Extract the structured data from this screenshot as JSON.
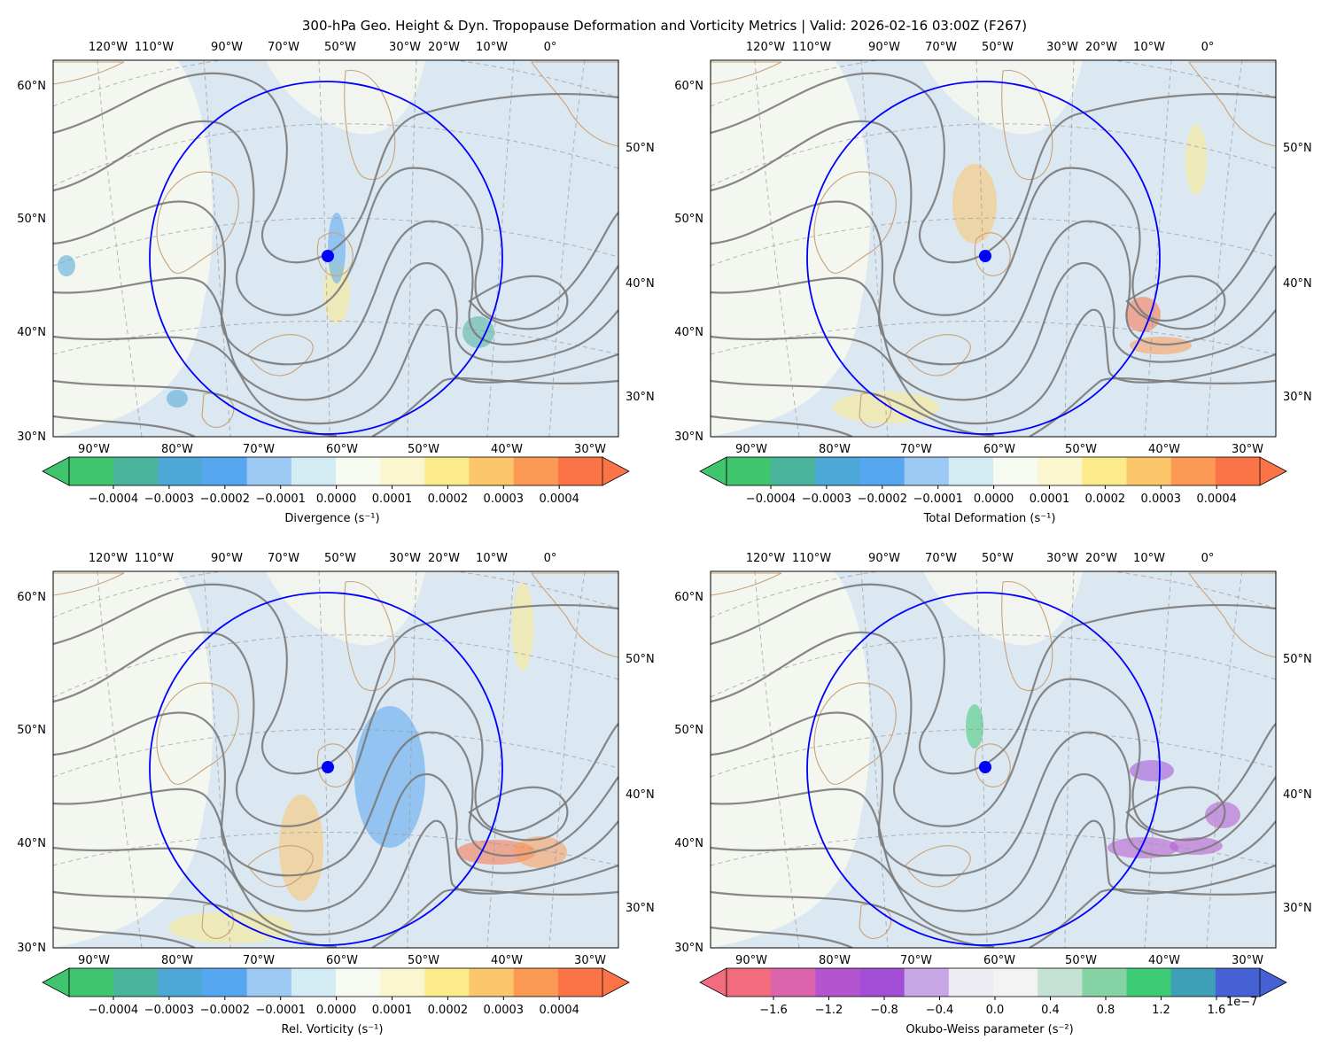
{
  "figure": {
    "title": "300-hPa Geo. Height & Dyn. Tropopause Deformation and Vorticity Metrics |  Valid: 2026-02-16 03:00Z (F267)"
  },
  "map_labels": {
    "top_lon": [
      "120°W",
      "110°W",
      "90°W",
      "70°W",
      "50°W",
      "30°W",
      "20°W",
      "10°W",
      "0°"
    ],
    "bottom_lon": [
      "90°W",
      "80°W",
      "70°W",
      "60°W",
      "50°W",
      "40°W",
      "30°W"
    ],
    "left_lat": [
      "60°N",
      "50°N",
      "40°N",
      "30°N"
    ],
    "right_lat": [
      "50°N",
      "40°N",
      "30°N"
    ]
  },
  "panels": [
    {
      "id": "divergence",
      "colorbar_label": "Divergence (s⁻¹)",
      "colorbar_ticks": [
        "−0.0004",
        "−0.0003",
        "−0.0002",
        "−0.0001",
        "0.0000",
        "0.0001",
        "0.0002",
        "0.0003",
        "0.0004"
      ],
      "colormap": [
        "#3ec56e",
        "#4ab39c",
        "#4da8d8",
        "#56a6f0",
        "#9ccaf4",
        "#d3ecf4",
        "#f6fbf2",
        "#fbf6cf",
        "#fbeb8a",
        "#fcc66a",
        "#fc9a55",
        "#fb7448"
      ]
    },
    {
      "id": "deformation",
      "colorbar_label": "Total Deformation (s⁻¹)",
      "colorbar_ticks": [
        "−0.0004",
        "−0.0003",
        "−0.0002",
        "−0.0001",
        "0.0000",
        "0.0001",
        "0.0002",
        "0.0003",
        "0.0004"
      ],
      "colormap": [
        "#3ec56e",
        "#4ab39c",
        "#4da8d8",
        "#56a6f0",
        "#9ccaf4",
        "#d3ecf4",
        "#f6fbf2",
        "#fbf6cf",
        "#fbeb8a",
        "#fcc66a",
        "#fc9a55",
        "#fb7448"
      ]
    },
    {
      "id": "vorticity",
      "colorbar_label": "Rel. Vorticity (s⁻¹)",
      "colorbar_ticks": [
        "−0.0004",
        "−0.0003",
        "−0.0002",
        "−0.0001",
        "0.0000",
        "0.0001",
        "0.0002",
        "0.0003",
        "0.0004"
      ],
      "colormap": [
        "#3ec56e",
        "#4ab39c",
        "#4da8d8",
        "#56a6f0",
        "#9ccaf4",
        "#d3ecf4",
        "#f6fbf2",
        "#fbf6cf",
        "#fbeb8a",
        "#fcc66a",
        "#fc9a55",
        "#fb7448"
      ]
    },
    {
      "id": "okubo-weiss",
      "colorbar_label": "Okubo-Weiss parameter (s⁻²)",
      "colorbar_exponent": "1e−7",
      "colorbar_ticks": [
        "−1.6",
        "−1.2",
        "−0.8",
        "−0.4",
        "0.0",
        "0.4",
        "0.8",
        "1.2",
        "1.6"
      ],
      "colormap": [
        "#f36c7e",
        "#dc64ad",
        "#b455cf",
        "#a24ed6",
        "#c9a7e6",
        "#ececf2",
        "#f3f3f3",
        "#c6e2d4",
        "#86d3a5",
        "#3ecb75",
        "#3f9fb6",
        "#4561d4"
      ]
    }
  ],
  "colors": {
    "ocean": "#dbe7f1",
    "land": "#f6f8ef",
    "coast": "#c9a27a",
    "height_contour": "#7a7a7a",
    "grid": "#9a9a9a",
    "circle": "#0000ff",
    "marker": "#0000ff"
  }
}
